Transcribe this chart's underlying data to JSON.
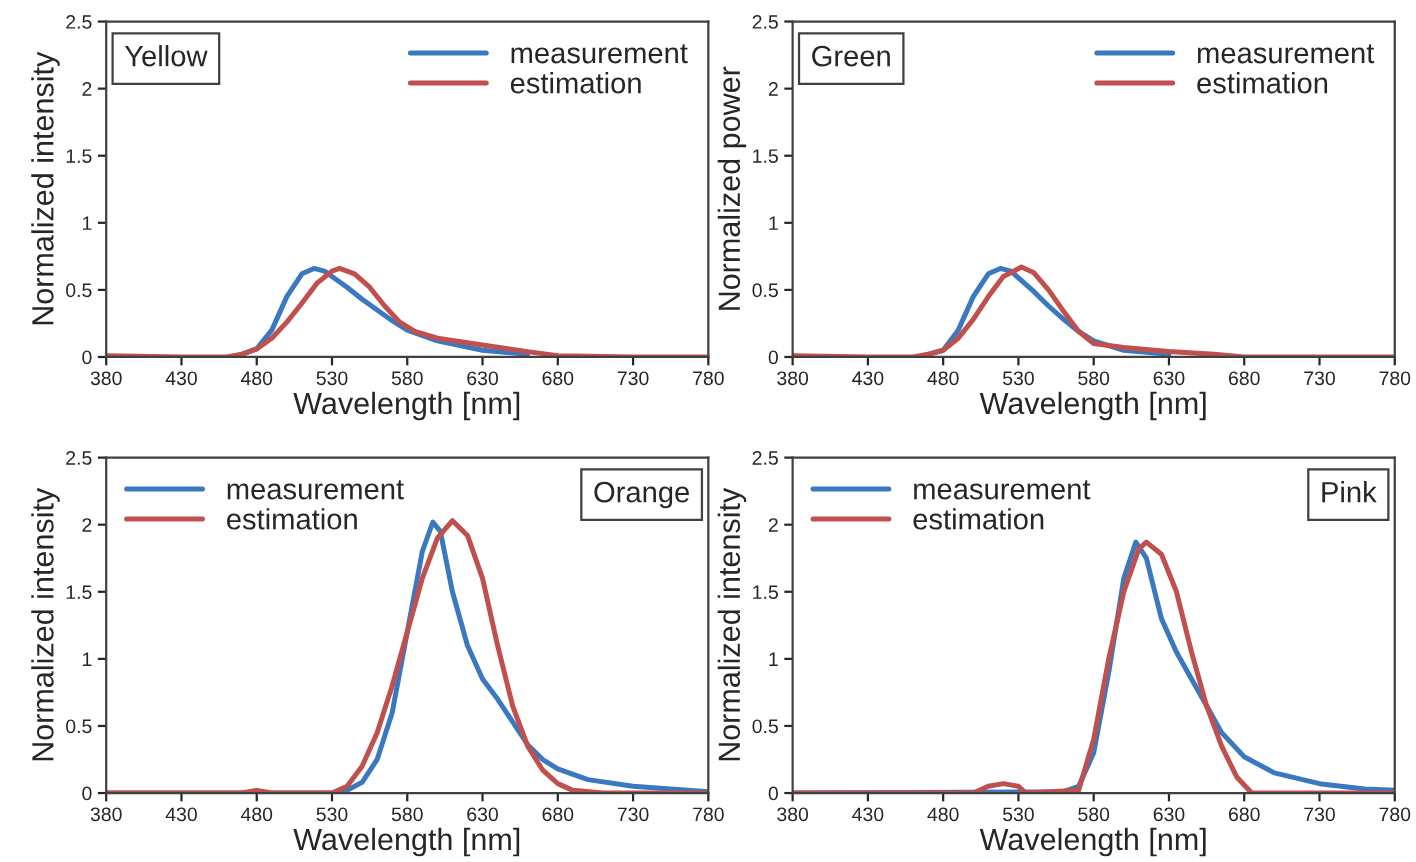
{
  "chart_data": [
    {
      "type": "line",
      "annotations": [
        "Yellow"
      ],
      "xlabel": "Wavelength [nm]",
      "ylabel": "Normalized intensity",
      "xlim": [
        380,
        780
      ],
      "ylim": [
        0,
        2.5
      ],
      "xticks": [
        380,
        430,
        480,
        530,
        580,
        630,
        680,
        730,
        780
      ],
      "yticks": [
        0,
        0.5,
        1,
        1.5,
        2,
        2.5
      ],
      "grid": false,
      "legend": "top right",
      "series": [
        {
          "name": "measurement",
          "color": "#3a78bf",
          "x": [
            470,
            480,
            490,
            500,
            510,
            518,
            525,
            530,
            540,
            550,
            560,
            570,
            580,
            600,
            630,
            660
          ],
          "values": [
            0.02,
            0.06,
            0.2,
            0.45,
            0.62,
            0.66,
            0.64,
            0.6,
            0.52,
            0.43,
            0.35,
            0.27,
            0.2,
            0.12,
            0.05,
            0.02
          ]
        },
        {
          "name": "estimation",
          "color": "#c0504d",
          "x": [
            380,
            430,
            460,
            470,
            480,
            490,
            500,
            510,
            520,
            530,
            535,
            545,
            555,
            565,
            575,
            585,
            600,
            630,
            660,
            680,
            730,
            780
          ],
          "values": [
            0.01,
            0,
            0,
            0.02,
            0.06,
            0.14,
            0.26,
            0.4,
            0.55,
            0.64,
            0.66,
            0.62,
            0.52,
            0.38,
            0.26,
            0.19,
            0.14,
            0.09,
            0.04,
            0.01,
            0,
            0
          ]
        }
      ]
    },
    {
      "type": "line",
      "annotations": [
        "Green"
      ],
      "xlabel": "Wavelength [nm]",
      "ylabel": "Normalized power",
      "xlim": [
        380,
        780
      ],
      "ylim": [
        0,
        2.5
      ],
      "xticks": [
        380,
        430,
        480,
        530,
        580,
        630,
        680,
        730,
        780
      ],
      "yticks": [
        0,
        0.5,
        1,
        1.5,
        2,
        2.5
      ],
      "grid": false,
      "legend": "top right",
      "series": [
        {
          "name": "measurement",
          "color": "#3a78bf",
          "x": [
            470,
            480,
            490,
            500,
            510,
            518,
            525,
            530,
            540,
            550,
            560,
            570,
            580,
            600,
            630
          ],
          "values": [
            0.02,
            0.05,
            0.2,
            0.45,
            0.62,
            0.66,
            0.64,
            0.59,
            0.49,
            0.38,
            0.28,
            0.19,
            0.12,
            0.05,
            0.02
          ]
        },
        {
          "name": "estimation",
          "color": "#c0504d",
          "x": [
            380,
            430,
            460,
            470,
            480,
            490,
            500,
            510,
            520,
            532,
            540,
            550,
            560,
            570,
            580,
            600,
            630,
            660,
            680,
            730,
            780
          ],
          "values": [
            0.01,
            0,
            0,
            0.02,
            0.05,
            0.14,
            0.28,
            0.45,
            0.6,
            0.67,
            0.63,
            0.5,
            0.34,
            0.19,
            0.1,
            0.07,
            0.04,
            0.02,
            0,
            0,
            0
          ]
        }
      ]
    },
    {
      "type": "line",
      "annotations": [
        "Orange"
      ],
      "xlabel": "Wavelength [nm]",
      "ylabel": "Normalized intensity",
      "xlim": [
        380,
        780
      ],
      "ylim": [
        0,
        2.5
      ],
      "xticks": [
        380,
        430,
        480,
        530,
        580,
        630,
        680,
        730,
        780
      ],
      "yticks": [
        0,
        0.5,
        1,
        1.5,
        2,
        2.5
      ],
      "grid": false,
      "legend": "top left",
      "series": [
        {
          "name": "measurement",
          "color": "#3a78bf",
          "x": [
            380,
            530,
            540,
            550,
            560,
            570,
            580,
            590,
            597,
            602,
            610,
            620,
            630,
            640,
            650,
            660,
            670,
            680,
            700,
            730,
            780
          ],
          "values": [
            0,
            0,
            0.02,
            0.08,
            0.25,
            0.6,
            1.2,
            1.8,
            2.02,
            1.95,
            1.5,
            1.1,
            0.85,
            0.7,
            0.53,
            0.36,
            0.25,
            0.18,
            0.1,
            0.05,
            0.01
          ]
        },
        {
          "name": "estimation",
          "color": "#c0504d",
          "x": [
            380,
            470,
            480,
            490,
            530,
            540,
            550,
            560,
            570,
            580,
            590,
            600,
            610,
            620,
            630,
            640,
            650,
            660,
            670,
            680,
            690,
            710,
            780
          ],
          "values": [
            0,
            0,
            0.02,
            0,
            0,
            0.05,
            0.2,
            0.45,
            0.8,
            1.2,
            1.6,
            1.9,
            2.03,
            1.92,
            1.6,
            1.1,
            0.65,
            0.35,
            0.17,
            0.07,
            0.02,
            0,
            0
          ]
        }
      ]
    },
    {
      "type": "line",
      "annotations": [
        "Pink"
      ],
      "xlabel": "Wavelength [nm]",
      "ylabel": "Normalized intensity",
      "xlim": [
        380,
        780
      ],
      "ylim": [
        0,
        2.5
      ],
      "xticks": [
        380,
        430,
        480,
        530,
        580,
        630,
        680,
        730,
        780
      ],
      "yticks": [
        0,
        0.5,
        1,
        1.5,
        2,
        2.5
      ],
      "grid": false,
      "legend": "top left",
      "series": [
        {
          "name": "measurement",
          "color": "#3a78bf",
          "x": [
            380,
            560,
            570,
            580,
            590,
            600,
            608,
            615,
            625,
            635,
            645,
            655,
            665,
            680,
            700,
            730,
            760,
            780
          ],
          "values": [
            0,
            0.01,
            0.05,
            0.3,
            0.9,
            1.6,
            1.87,
            1.75,
            1.3,
            1.05,
            0.85,
            0.65,
            0.45,
            0.27,
            0.15,
            0.07,
            0.03,
            0.02
          ]
        },
        {
          "name": "estimation",
          "color": "#c0504d",
          "x": [
            380,
            500,
            510,
            520,
            530,
            535,
            570,
            580,
            590,
            600,
            610,
            615,
            625,
            635,
            645,
            655,
            665,
            675,
            685,
            780
          ],
          "values": [
            0,
            0,
            0.05,
            0.07,
            0.05,
            0,
            0.02,
            0.4,
            1.0,
            1.5,
            1.82,
            1.87,
            1.78,
            1.5,
            1.05,
            0.65,
            0.35,
            0.12,
            0,
            0
          ]
        }
      ]
    }
  ]
}
